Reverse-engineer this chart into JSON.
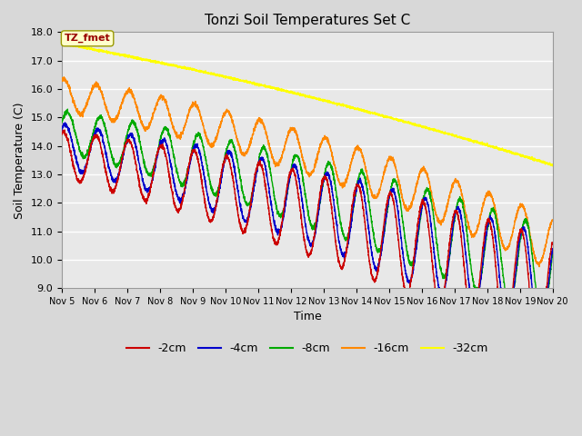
{
  "title": "Tonzi Soil Temperatures Set C",
  "xlabel": "Time",
  "ylabel": "Soil Temperature (C)",
  "ylim": [
    9.0,
    18.0
  ],
  "yticks": [
    9.0,
    10.0,
    11.0,
    12.0,
    13.0,
    14.0,
    15.0,
    16.0,
    17.0,
    18.0
  ],
  "xtick_labels": [
    "Nov 5",
    "Nov 6",
    "Nov 7",
    "Nov 8",
    "Nov 9",
    "Nov 10",
    "Nov 11",
    "Nov 12",
    "Nov 13",
    "Nov 14",
    "Nov 15",
    "Nov 16",
    "Nov 17",
    "Nov 18",
    "Nov 19",
    "Nov 20"
  ],
  "series_colors": [
    "#cc0000",
    "#0000cc",
    "#00aa00",
    "#ff8800",
    "#ffff00"
  ],
  "series_labels": [
    "-2cm",
    "-4cm",
    "-8cm",
    "-16cm",
    "-32cm"
  ],
  "fig_bg_color": "#d8d8d8",
  "plot_bg_color": "#e8e8e8",
  "grid_color": "#ffffff",
  "annotation_text": "TZ_fmet",
  "annotation_bg": "#ffffcc",
  "annotation_fg": "#990000",
  "n_points": 3600,
  "days": 15
}
